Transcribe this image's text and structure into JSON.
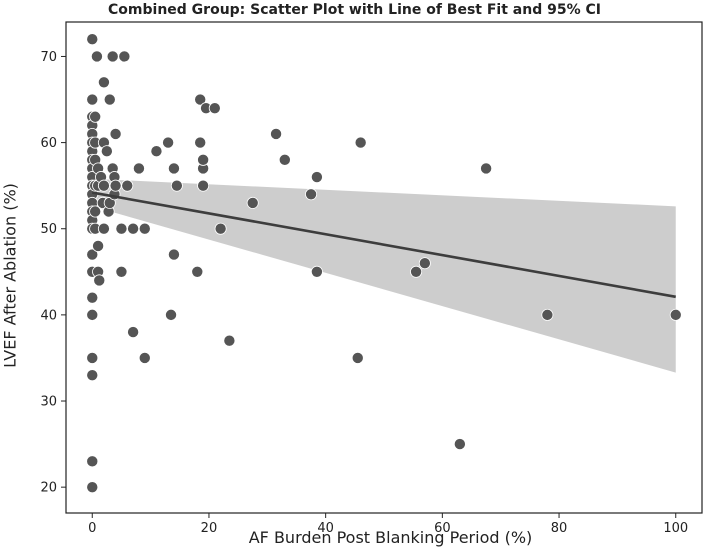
{
  "chart_data": {
    "type": "scatter",
    "title": "Combined Group: Scatter Plot with Line of Best Fit and 95% CI",
    "xlabel": "AF Burden Post Blanking Period (%)",
    "ylabel": "LVEF After Ablation (%)",
    "xlim": [
      -4.5,
      104.5
    ],
    "ylim": [
      17,
      74
    ],
    "xticks": [
      0,
      20,
      40,
      60,
      80,
      100
    ],
    "yticks": [
      20,
      30,
      40,
      50,
      60,
      70
    ],
    "grid": false,
    "fit_line": {
      "x": [
        0,
        100
      ],
      "y": [
        54.2,
        42.1
      ]
    },
    "ci_band": {
      "x": [
        0,
        100
      ],
      "lower": [
        52.6,
        33.3
      ],
      "upper": [
        55.8,
        52.6
      ]
    },
    "points": [
      [
        0,
        72
      ],
      [
        0,
        65
      ],
      [
        0,
        63
      ],
      [
        0,
        62
      ],
      [
        0,
        61
      ],
      [
        0,
        60
      ],
      [
        0,
        59
      ],
      [
        0,
        58
      ],
      [
        0,
        57
      ],
      [
        0,
        56
      ],
      [
        0,
        55
      ],
      [
        0,
        54
      ],
      [
        0,
        53
      ],
      [
        0,
        52
      ],
      [
        0,
        51
      ],
      [
        0,
        50
      ],
      [
        0,
        47
      ],
      [
        0,
        45
      ],
      [
        0,
        42
      ],
      [
        0,
        40
      ],
      [
        0,
        35
      ],
      [
        0,
        33
      ],
      [
        0,
        23
      ],
      [
        0,
        20
      ],
      [
        0.5,
        63
      ],
      [
        0.5,
        60
      ],
      [
        0.5,
        58
      ],
      [
        0.5,
        55
      ],
      [
        0.5,
        52
      ],
      [
        0.5,
        50
      ],
      [
        0.8,
        70
      ],
      [
        1,
        57
      ],
      [
        1,
        55
      ],
      [
        1,
        48
      ],
      [
        1,
        45
      ],
      [
        1.2,
        44
      ],
      [
        1.5,
        56
      ],
      [
        1.8,
        53
      ],
      [
        2,
        67
      ],
      [
        2,
        60
      ],
      [
        2,
        55
      ],
      [
        2,
        50
      ],
      [
        2.5,
        59
      ],
      [
        2.8,
        52
      ],
      [
        3,
        65
      ],
      [
        3,
        53
      ],
      [
        3.5,
        70
      ],
      [
        3.5,
        57
      ],
      [
        3.8,
        56
      ],
      [
        3.8,
        54
      ],
      [
        4,
        61
      ],
      [
        4,
        55
      ],
      [
        5,
        50
      ],
      [
        5,
        45
      ],
      [
        5.5,
        70
      ],
      [
        6,
        55
      ],
      [
        7,
        50
      ],
      [
        7,
        38
      ],
      [
        8,
        57
      ],
      [
        9,
        50
      ],
      [
        9,
        35
      ],
      [
        11,
        59
      ],
      [
        13,
        60
      ],
      [
        13.5,
        40
      ],
      [
        14,
        57
      ],
      [
        14,
        47
      ],
      [
        14.5,
        55
      ],
      [
        18,
        45
      ],
      [
        18.5,
        65
      ],
      [
        18.5,
        60
      ],
      [
        19,
        57
      ],
      [
        19,
        55
      ],
      [
        19,
        58
      ],
      [
        19.5,
        64
      ],
      [
        21,
        64
      ],
      [
        22,
        50
      ],
      [
        23.5,
        37
      ],
      [
        27.5,
        53
      ],
      [
        31.5,
        61
      ],
      [
        33,
        58
      ],
      [
        37.5,
        54
      ],
      [
        38.5,
        56
      ],
      [
        38.5,
        45
      ],
      [
        45.5,
        35
      ],
      [
        46,
        60
      ],
      [
        55.5,
        45
      ],
      [
        57,
        46
      ],
      [
        63,
        25
      ],
      [
        67.5,
        57
      ],
      [
        78,
        40
      ],
      [
        100,
        40
      ]
    ]
  }
}
